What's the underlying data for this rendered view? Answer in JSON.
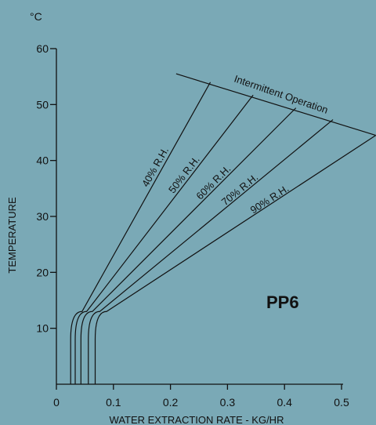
{
  "unit_label": "°C",
  "model_label": "PP6",
  "chart_data": {
    "type": "line",
    "title": "",
    "xlabel": "WATER EXTRACTION RATE - KG/HR",
    "ylabel": "TEMPERATURE",
    "xlim": [
      0,
      0.5
    ],
    "ylim": [
      0,
      60
    ],
    "x_ticks": [
      "0",
      "0.1",
      "0.2",
      "0.3",
      "0.4",
      "0.5"
    ],
    "y_ticks": [
      "10",
      "20",
      "30",
      "40",
      "50",
      "60"
    ],
    "grid": false,
    "legend": "none",
    "boundary_label": "Intermittent Operation",
    "boundary": {
      "x": [
        0.21,
        0.56
      ],
      "y": [
        55.5,
        44.5
      ]
    },
    "series": [
      {
        "name": "40% R.H.",
        "x": [
          0.025,
          0.025,
          0.045,
          0.27
        ],
        "y": [
          0,
          8,
          13,
          54.0
        ]
      },
      {
        "name": "50% R.H.",
        "x": [
          0.033,
          0.033,
          0.053,
          0.345
        ],
        "y": [
          0,
          8,
          13,
          51.7
        ]
      },
      {
        "name": "60% R.H.",
        "x": [
          0.043,
          0.043,
          0.063,
          0.42
        ],
        "y": [
          0,
          8,
          13,
          49.4
        ]
      },
      {
        "name": "70% R.H.",
        "x": [
          0.056,
          0.056,
          0.076,
          0.485
        ],
        "y": [
          0,
          8,
          13,
          47.3
        ]
      },
      {
        "name": "90% R.H.",
        "x": [
          0.068,
          0.068,
          0.088,
          0.56
        ],
        "y": [
          0,
          8,
          13,
          44.5
        ]
      }
    ]
  }
}
